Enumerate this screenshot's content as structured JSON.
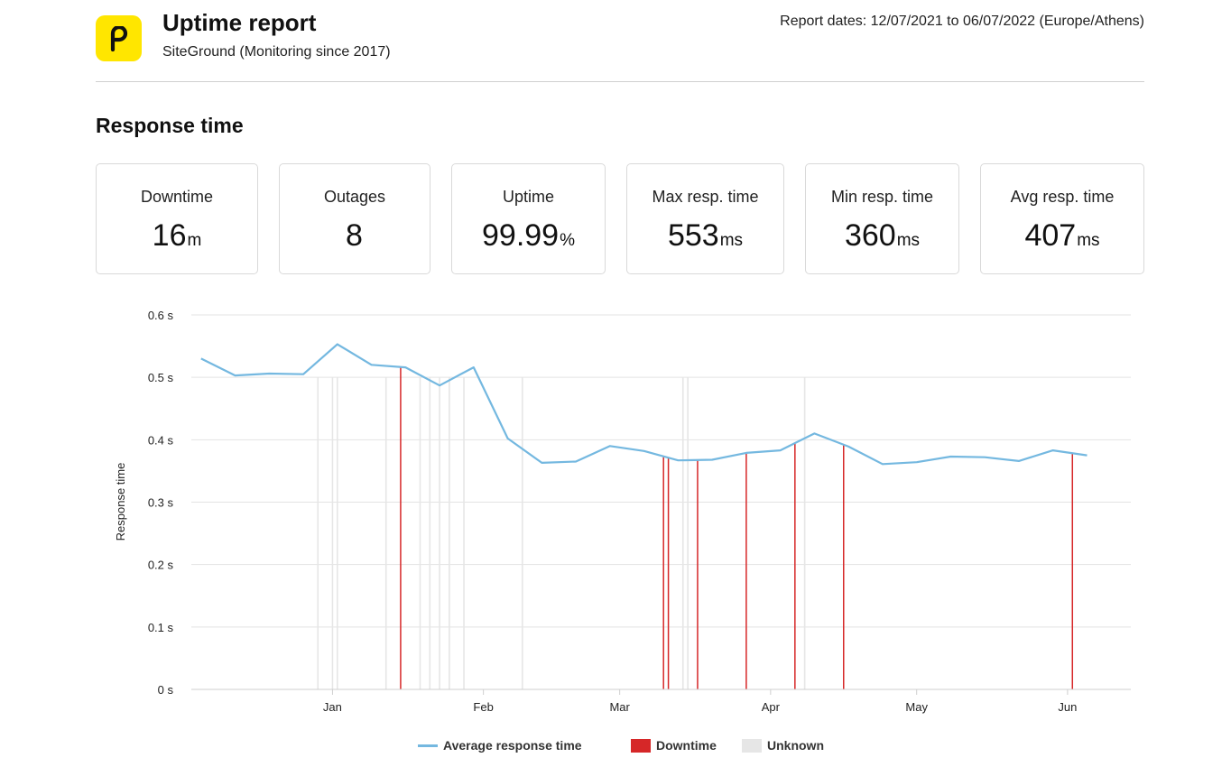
{
  "header": {
    "title": "Uptime report",
    "subtitle": "SiteGround (Monitoring since 2017)",
    "report_dates": "Report dates: 12/07/2021 to 06/07/2022 (Europe/Athens)",
    "logo_icon": "pingdom-p-icon",
    "logo_color": "#ffe600"
  },
  "section": {
    "title": "Response time"
  },
  "stats": [
    {
      "label": "Downtime",
      "value": "16",
      "unit": "m"
    },
    {
      "label": "Outages",
      "value": "8",
      "unit": ""
    },
    {
      "label": "Uptime",
      "value": "99.99",
      "unit": "%"
    },
    {
      "label": "Max resp. time",
      "value": "553",
      "unit": "ms"
    },
    {
      "label": "Min resp. time",
      "value": "360",
      "unit": "ms"
    },
    {
      "label": "Avg resp. time",
      "value": "407",
      "unit": "ms"
    }
  ],
  "chart_data": {
    "type": "line",
    "ylabel": "Response time",
    "xlabel": "",
    "ylim": [
      0,
      0.6
    ],
    "y_ticks": [
      0,
      0.1,
      0.2,
      0.3,
      0.4,
      0.5,
      0.6
    ],
    "y_tick_labels": [
      "0 s",
      "0.1 s",
      "0.2 s",
      "0.3 s",
      "0.4 s",
      "0.5 s",
      "0.6 s"
    ],
    "x_range": [
      "2021-12-03",
      "2022-06-14"
    ],
    "x_ticks": [
      "2022-01-01",
      "2022-02-01",
      "2022-03-01",
      "2022-04-01",
      "2022-05-01",
      "2022-06-01"
    ],
    "x_tick_labels": [
      "Jan",
      "Feb",
      "Mar",
      "Apr",
      "May",
      "Jun"
    ],
    "grid": true,
    "legend_position": "bottom",
    "series": [
      {
        "name": "Average response time",
        "color": "#74b8e0",
        "x": [
          "2021-12-05",
          "2021-12-12",
          "2021-12-19",
          "2021-12-26",
          "2022-01-02",
          "2022-01-09",
          "2022-01-16",
          "2022-01-23",
          "2022-01-30",
          "2022-02-06",
          "2022-02-13",
          "2022-02-20",
          "2022-02-27",
          "2022-03-06",
          "2022-03-13",
          "2022-03-20",
          "2022-03-27",
          "2022-04-03",
          "2022-04-10",
          "2022-04-17",
          "2022-04-24",
          "2022-05-01",
          "2022-05-08",
          "2022-05-15",
          "2022-05-22",
          "2022-05-29",
          "2022-06-05"
        ],
        "y": [
          0.53,
          0.503,
          0.506,
          0.505,
          0.553,
          0.52,
          0.516,
          0.487,
          0.516,
          0.402,
          0.363,
          0.365,
          0.39,
          0.382,
          0.367,
          0.368,
          0.379,
          0.383,
          0.41,
          0.389,
          0.361,
          0.364,
          0.373,
          0.372,
          0.366,
          0.383,
          0.375
        ]
      }
    ],
    "downtime": {
      "name": "Downtime",
      "color": "#d62728",
      "dates": [
        "2022-01-15",
        "2022-03-10",
        "2022-03-11",
        "2022-03-17",
        "2022-03-27",
        "2022-04-06",
        "2022-04-16",
        "2022-06-02"
      ]
    },
    "unknown": {
      "name": "Unknown",
      "color": "#e6e6e6",
      "dates": [
        "2021-12-29",
        "2022-01-01",
        "2022-01-02",
        "2022-01-12",
        "2022-01-19",
        "2022-01-21",
        "2022-01-23",
        "2022-01-25",
        "2022-01-28",
        "2022-02-09",
        "2022-03-14",
        "2022-03-15",
        "2022-04-08"
      ]
    }
  },
  "legend": {
    "items": [
      {
        "label": "Average response time",
        "color": "#74b8e0"
      },
      {
        "label": "Downtime",
        "color": "#d62728"
      },
      {
        "label": "Unknown",
        "color": "#e6e6e6"
      }
    ]
  }
}
